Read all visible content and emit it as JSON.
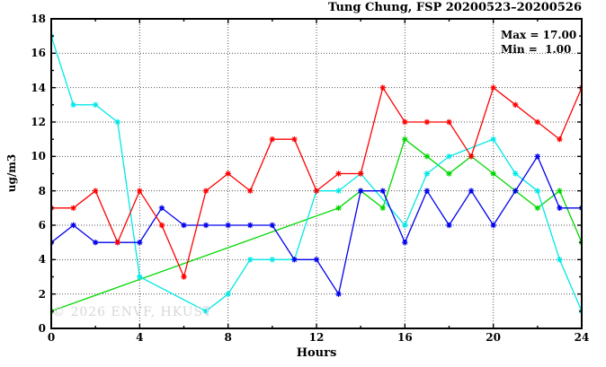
{
  "watermark": "© 2026 ENVF, HKUST",
  "stats": {
    "max_label": "Max = 17.00",
    "min_label": "Min =  1.00"
  },
  "chart_data": {
    "type": "line",
    "title": "Tung Chung, FSP 20200523–20200526",
    "xlabel": "Hours",
    "ylabel": "ug/m3",
    "xlim": [
      0,
      24
    ],
    "ylim": [
      0,
      18
    ],
    "grid": true,
    "legend": "none",
    "xticks_major": [
      0,
      4,
      8,
      12,
      16,
      20,
      24
    ],
    "xticks_minor": [
      2,
      6,
      10,
      14,
      18,
      22
    ],
    "yticks_major": [
      0,
      2,
      4,
      6,
      8,
      10,
      12,
      14,
      16,
      18
    ],
    "yticks_minor": [
      1,
      3,
      5,
      7,
      9,
      11,
      13,
      15,
      17
    ],
    "grid_x": [
      4,
      8,
      12,
      16,
      20
    ],
    "grid_y": [
      2,
      4,
      6,
      8,
      10,
      12,
      14,
      16
    ],
    "x": [
      0,
      1,
      2,
      3,
      4,
      5,
      6,
      7,
      8,
      9,
      10,
      11,
      12,
      13,
      14,
      15,
      16,
      17,
      18,
      19,
      20,
      21,
      22,
      23,
      24
    ],
    "series": [
      {
        "name": "series-green",
        "color": "#00d800",
        "values": [
          1,
          null,
          null,
          null,
          null,
          null,
          null,
          null,
          null,
          null,
          null,
          null,
          null,
          7,
          8,
          7,
          11,
          10,
          9,
          10,
          9,
          8,
          7,
          8,
          5
        ]
      },
      {
        "name": "series-cyan",
        "color": "#00e8e8",
        "values": [
          17,
          13,
          13,
          12,
          3,
          null,
          null,
          1,
          2,
          4,
          4,
          4,
          8,
          8,
          9,
          null,
          6,
          9,
          10,
          null,
          11,
          9,
          8,
          4,
          1
        ]
      },
      {
        "name": "series-blue",
        "color": "#0000ee",
        "values": [
          5,
          6,
          5,
          5,
          5,
          7,
          6,
          6,
          6,
          6,
          6,
          4,
          4,
          2,
          8,
          8,
          5,
          8,
          6,
          8,
          6,
          8,
          10,
          7,
          7
        ]
      },
      {
        "name": "series-red",
        "color": "#ff0000",
        "values": [
          7,
          7,
          8,
          5,
          8,
          6,
          3,
          8,
          9,
          8,
          11,
          11,
          8,
          9,
          9,
          14,
          12,
          12,
          12,
          10,
          14,
          13,
          12,
          11,
          14
        ]
      }
    ],
    "annotations": [
      {
        "text": "Max = 17.00"
      },
      {
        "text": "Min =  1.00"
      }
    ]
  }
}
